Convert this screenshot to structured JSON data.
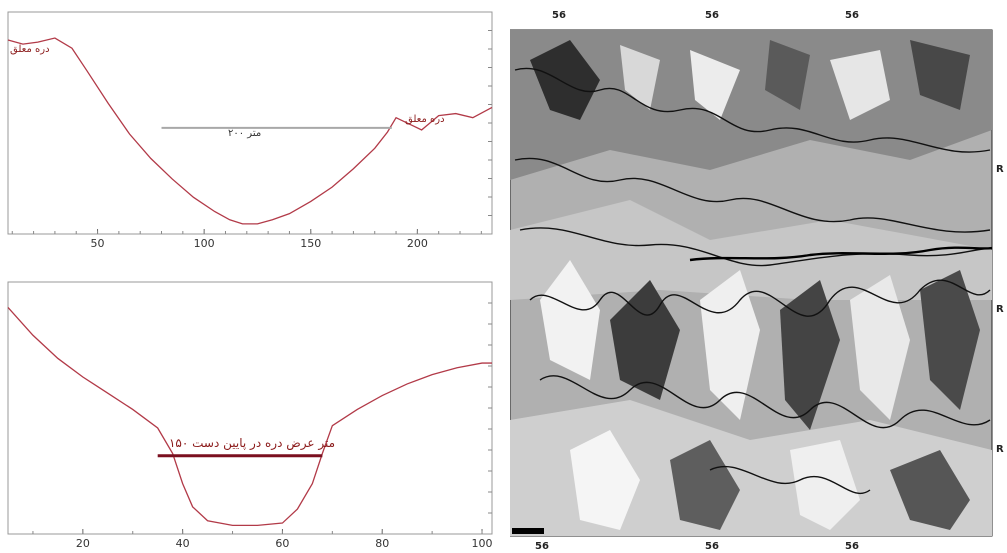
{
  "colors": {
    "profile_line": "#b23a48",
    "level_line_top": "#a8a8a8",
    "level_line_bottom": "#7a0f1f",
    "annotation": "#8b1a1a",
    "frame": "#666666"
  },
  "chart_data": [
    {
      "type": "line",
      "title": "",
      "xlabel": "",
      "ylabel": "",
      "xlim": [
        8,
        235
      ],
      "x_ticks": [
        50,
        100,
        150,
        200
      ],
      "series": [
        {
          "x": [
            8,
            15,
            22,
            30,
            38,
            45,
            55,
            65,
            75,
            85,
            95,
            105,
            112,
            118,
            125,
            132,
            140,
            150,
            160,
            170,
            180,
            186,
            190,
            196,
            202,
            210,
            218,
            226,
            235
          ],
          "y": [
            0.93,
            0.91,
            0.92,
            0.94,
            0.89,
            0.78,
            0.62,
            0.47,
            0.35,
            0.25,
            0.16,
            0.09,
            0.05,
            0.03,
            0.03,
            0.05,
            0.08,
            0.14,
            0.21,
            0.3,
            0.4,
            0.48,
            0.55,
            0.52,
            0.49,
            0.56,
            0.57,
            0.55,
            0.6
          ]
        }
      ],
      "level_line": {
        "x_start": 80,
        "x_end": 188,
        "y": 0.5
      },
      "annotations": {
        "left_label": "دره معلق",
        "right_label": "دره معلق",
        "width_label": "۲۰۰ متر"
      }
    },
    {
      "type": "line",
      "title": "",
      "xlabel": "",
      "ylabel": "",
      "xlim": [
        5,
        102
      ],
      "x_ticks": [
        20,
        40,
        60,
        80,
        100
      ],
      "series": [
        {
          "x": [
            5,
            10,
            15,
            20,
            25,
            30,
            35,
            38,
            40,
            42,
            45,
            50,
            55,
            60,
            63,
            66,
            68,
            70,
            75,
            80,
            85,
            90,
            95,
            100,
            102
          ],
          "y": [
            0.96,
            0.84,
            0.74,
            0.66,
            0.59,
            0.52,
            0.44,
            0.33,
            0.2,
            0.1,
            0.04,
            0.02,
            0.02,
            0.03,
            0.09,
            0.2,
            0.33,
            0.45,
            0.52,
            0.58,
            0.63,
            0.67,
            0.7,
            0.72,
            0.72
          ]
        }
      ],
      "level_line": {
        "x_start": 35,
        "x_end": 68,
        "y": 0.32
      },
      "annotations": {
        "width_label": "۱۵۰ متر عرض دره در پایین دست"
      }
    }
  ],
  "map": {
    "top_labels": [
      "56",
      "56",
      "56"
    ],
    "bottom_labels": [
      "56",
      "56",
      "56"
    ],
    "right_labels": [
      "R",
      "R",
      "R"
    ]
  }
}
